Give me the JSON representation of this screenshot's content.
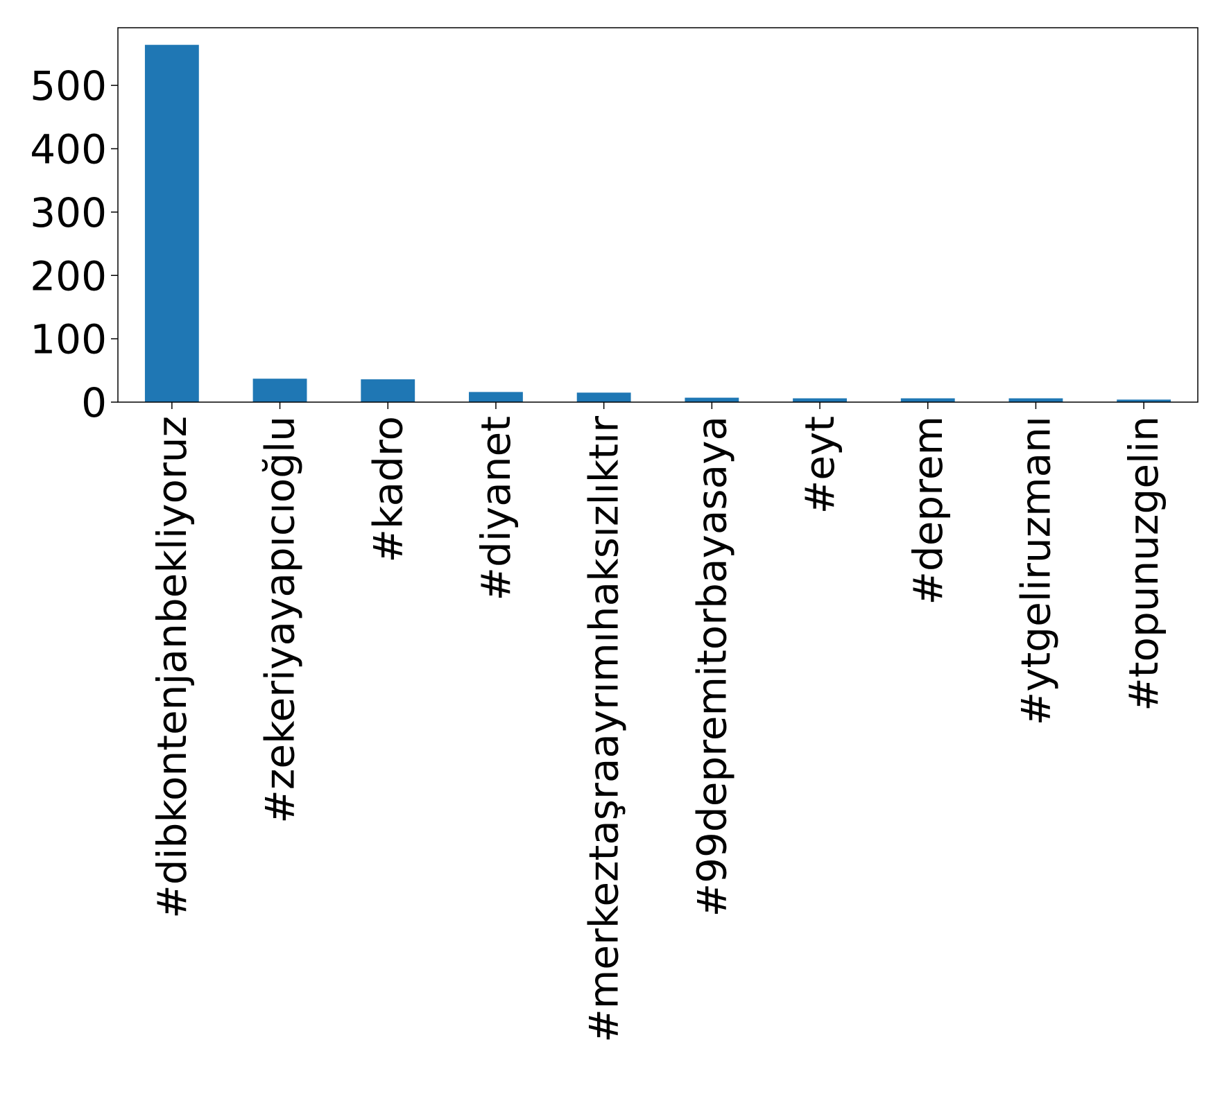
{
  "chart_data": {
    "type": "bar",
    "title": "",
    "xlabel": "",
    "ylabel": "",
    "categories": [
      "#dibkontenjanbekliyoruz",
      "#zekeriyayapıcıoğlu",
      "#kadro",
      "#diyanet",
      "#merkeztaşraayrımıhaksızlıktır",
      "#99depremitorbayasaya",
      "#eyt",
      "#deprem",
      "#ytgeliruzmanı",
      "#topunuzgelin"
    ],
    "values": [
      564,
      37,
      36,
      16,
      15,
      7,
      6,
      6,
      6,
      4
    ],
    "ylim": [
      0,
      591
    ],
    "yticks": [
      0,
      100,
      200,
      300,
      400,
      500
    ],
    "ytick_labels": [
      "0",
      "100",
      "200",
      "300",
      "400",
      "500"
    ],
    "grid": false,
    "legend": "none",
    "bar_color": "#1f77b4"
  }
}
